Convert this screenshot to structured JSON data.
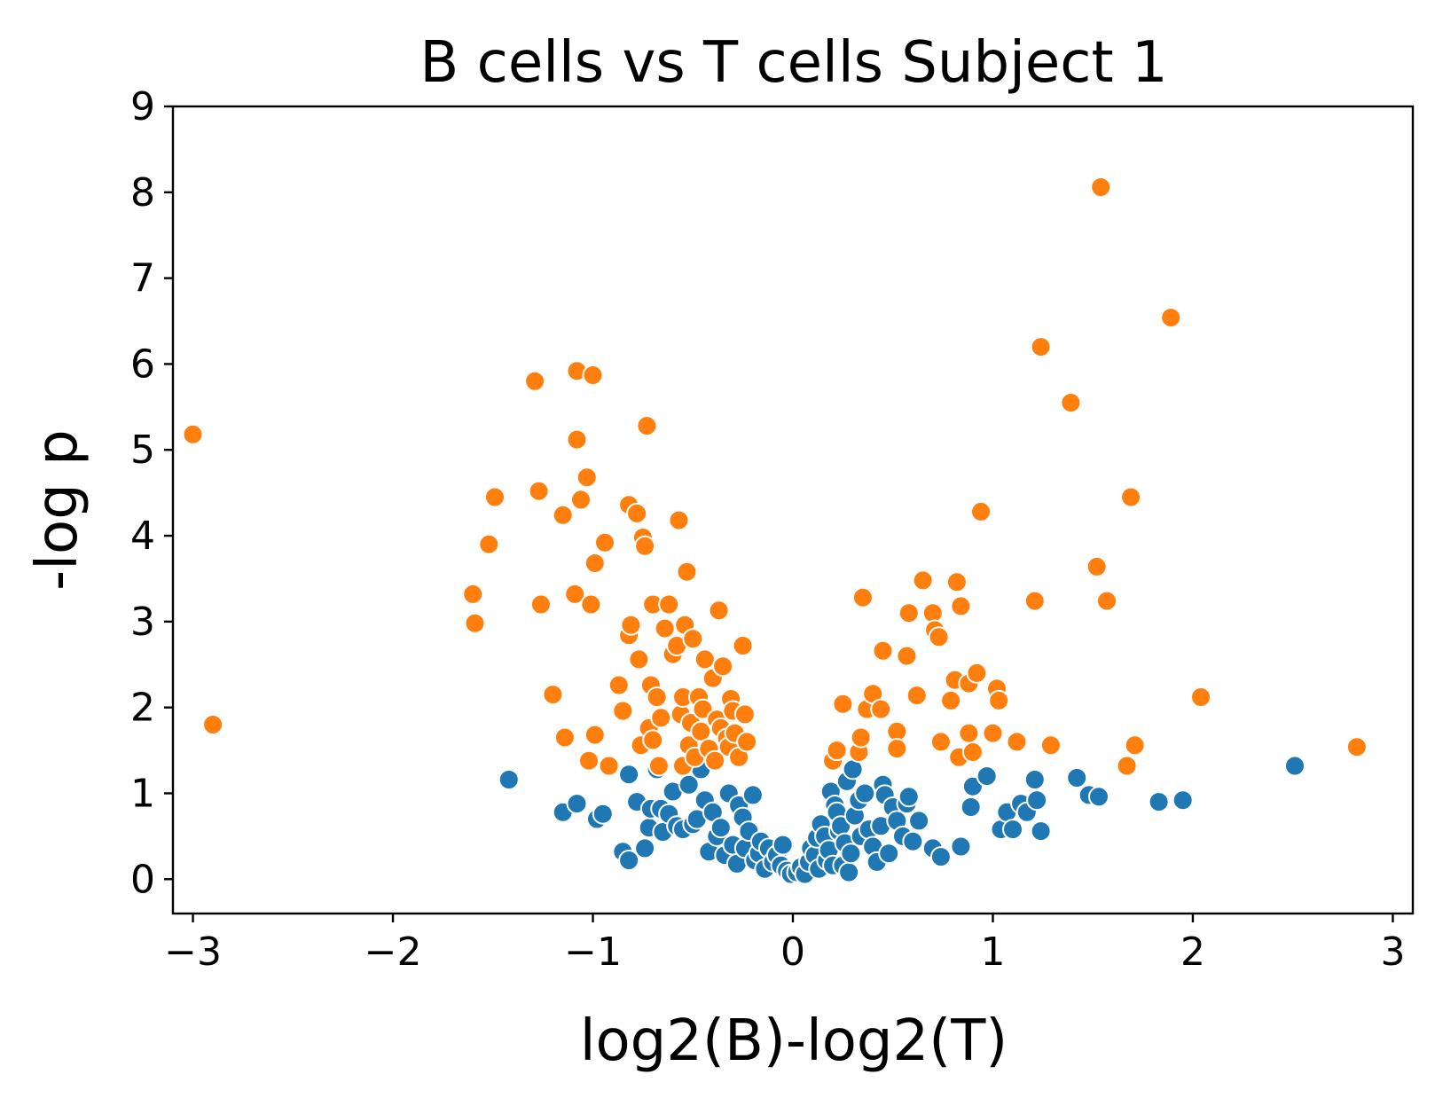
{
  "chart_data": {
    "type": "scatter",
    "title": "B cells vs T cells Subject 1",
    "xlabel": "log2(B)-log2(T)",
    "ylabel": "-log p",
    "xlim": [
      -3.1,
      3.1
    ],
    "ylim": [
      -0.4,
      9.0
    ],
    "x_ticks": [
      -3,
      -2,
      -1,
      0,
      1,
      2,
      3
    ],
    "x_tick_labels": [
      "−3",
      "−2",
      "−1",
      "0",
      "1",
      "2",
      "3"
    ],
    "y_ticks": [
      0,
      1,
      2,
      3,
      4,
      5,
      6,
      7,
      8,
      9
    ],
    "y_tick_labels": [
      "0",
      "1",
      "2",
      "3",
      "4",
      "5",
      "6",
      "7",
      "8",
      "9"
    ],
    "grid": false,
    "legend": "none",
    "colors": {
      "blue": "#1f77b4",
      "orange": "#ff7f0e"
    },
    "series": [
      {
        "color": "#1f77b4",
        "points": [
          [
            -1.42,
            1.16
          ],
          [
            -1.15,
            0.78
          ],
          [
            -1.08,
            0.88
          ],
          [
            -0.98,
            0.7
          ],
          [
            -0.95,
            0.76
          ],
          [
            -0.85,
            0.32
          ],
          [
            -0.82,
            0.22
          ],
          [
            -0.82,
            1.22
          ],
          [
            -0.78,
            0.9
          ],
          [
            -0.74,
            0.36
          ],
          [
            -0.72,
            0.6
          ],
          [
            -0.71,
            0.82
          ],
          [
            -0.68,
            1.28
          ],
          [
            -0.66,
            0.82
          ],
          [
            -0.65,
            0.55
          ],
          [
            -0.62,
            0.76
          ],
          [
            -0.6,
            1.02
          ],
          [
            -0.58,
            0.62
          ],
          [
            -0.55,
            0.58
          ],
          [
            -0.52,
            1.1
          ],
          [
            -0.5,
            0.64
          ],
          [
            -0.48,
            0.7
          ],
          [
            -0.46,
            1.28
          ],
          [
            -0.44,
            0.92
          ],
          [
            -0.42,
            0.32
          ],
          [
            -0.4,
            0.78
          ],
          [
            -0.38,
            0.5
          ],
          [
            -0.36,
            0.6
          ],
          [
            -0.34,
            0.28
          ],
          [
            -0.32,
            1.0
          ],
          [
            -0.3,
            0.4
          ],
          [
            -0.28,
            0.18
          ],
          [
            -0.27,
            0.86
          ],
          [
            -0.25,
            0.72
          ],
          [
            -0.24,
            0.36
          ],
          [
            -0.22,
            0.56
          ],
          [
            -0.2,
            0.98
          ],
          [
            -0.19,
            0.22
          ],
          [
            -0.17,
            0.3
          ],
          [
            -0.16,
            0.44
          ],
          [
            -0.14,
            0.12
          ],
          [
            -0.12,
            0.36
          ],
          [
            -0.1,
            0.2
          ],
          [
            -0.08,
            0.28
          ],
          [
            -0.06,
            0.16
          ],
          [
            -0.05,
            0.4
          ],
          [
            -0.03,
            0.1
          ],
          [
            -0.01,
            0.06
          ],
          [
            0.02,
            0.08
          ],
          [
            0.04,
            0.14
          ],
          [
            0.06,
            0.06
          ],
          [
            0.08,
            0.2
          ],
          [
            0.09,
            0.36
          ],
          [
            0.11,
            0.28
          ],
          [
            0.12,
            0.48
          ],
          [
            0.13,
            0.12
          ],
          [
            0.14,
            0.64
          ],
          [
            0.16,
            0.5
          ],
          [
            0.17,
            0.22
          ],
          [
            0.18,
            0.34
          ],
          [
            0.19,
            1.02
          ],
          [
            0.2,
            0.16
          ],
          [
            0.21,
            0.86
          ],
          [
            0.22,
            0.78
          ],
          [
            0.23,
            0.56
          ],
          [
            0.24,
            0.62
          ],
          [
            0.25,
            0.16
          ],
          [
            0.26,
            0.42
          ],
          [
            0.27,
            1.14
          ],
          [
            0.28,
            0.08
          ],
          [
            0.29,
            0.3
          ],
          [
            0.3,
            1.28
          ],
          [
            0.31,
            0.74
          ],
          [
            0.33,
            0.92
          ],
          [
            0.34,
            0.5
          ],
          [
            0.36,
            1.0
          ],
          [
            0.38,
            0.58
          ],
          [
            0.4,
            0.38
          ],
          [
            0.42,
            0.2
          ],
          [
            0.44,
            0.62
          ],
          [
            0.45,
            1.1
          ],
          [
            0.46,
            0.98
          ],
          [
            0.48,
            0.3
          ],
          [
            0.5,
            0.84
          ],
          [
            0.52,
            0.68
          ],
          [
            0.55,
            0.5
          ],
          [
            0.57,
            0.88
          ],
          [
            0.58,
            0.96
          ],
          [
            0.6,
            0.44
          ],
          [
            0.63,
            0.68
          ],
          [
            0.7,
            0.36
          ],
          [
            0.74,
            0.26
          ],
          [
            0.84,
            0.38
          ],
          [
            0.89,
            0.84
          ],
          [
            0.9,
            1.08
          ],
          [
            0.97,
            1.2
          ],
          [
            1.04,
            0.58
          ],
          [
            1.07,
            0.78
          ],
          [
            1.1,
            0.58
          ],
          [
            1.14,
            0.88
          ],
          [
            1.17,
            0.78
          ],
          [
            1.21,
            1.16
          ],
          [
            1.22,
            0.92
          ],
          [
            1.24,
            0.56
          ],
          [
            1.42,
            1.18
          ],
          [
            1.48,
            0.98
          ],
          [
            1.53,
            0.96
          ],
          [
            1.83,
            0.9
          ],
          [
            1.95,
            0.92
          ],
          [
            2.51,
            1.32
          ]
        ]
      },
      {
        "color": "#ff7f0e",
        "points": [
          [
            -3.0,
            5.18
          ],
          [
            -2.9,
            1.8
          ],
          [
            -1.6,
            3.32
          ],
          [
            -1.59,
            2.98
          ],
          [
            -1.52,
            3.9
          ],
          [
            -1.49,
            4.45
          ],
          [
            -1.29,
            5.8
          ],
          [
            -1.27,
            4.52
          ],
          [
            -1.26,
            3.2
          ],
          [
            -1.2,
            2.15
          ],
          [
            -1.15,
            4.24
          ],
          [
            -1.14,
            1.65
          ],
          [
            -1.09,
            3.32
          ],
          [
            -1.08,
            5.12
          ],
          [
            -1.08,
            5.92
          ],
          [
            -1.06,
            4.42
          ],
          [
            -1.03,
            4.68
          ],
          [
            -1.02,
            1.38
          ],
          [
            -1.01,
            3.2
          ],
          [
            -1.0,
            5.87
          ],
          [
            -0.99,
            1.68
          ],
          [
            -0.99,
            3.68
          ],
          [
            -0.94,
            3.92
          ],
          [
            -0.92,
            1.32
          ],
          [
            -0.87,
            2.26
          ],
          [
            -0.85,
            1.96
          ],
          [
            -0.82,
            4.36
          ],
          [
            -0.82,
            2.84
          ],
          [
            -0.81,
            2.96
          ],
          [
            -0.78,
            4.26
          ],
          [
            -0.77,
            2.56
          ],
          [
            -0.76,
            1.56
          ],
          [
            -0.75,
            3.98
          ],
          [
            -0.74,
            3.88
          ],
          [
            -0.73,
            5.28
          ],
          [
            -0.72,
            1.76
          ],
          [
            -0.71,
            2.26
          ],
          [
            -0.7,
            1.62
          ],
          [
            -0.7,
            3.2
          ],
          [
            -0.68,
            2.12
          ],
          [
            -0.67,
            1.32
          ],
          [
            -0.66,
            1.88
          ],
          [
            -0.64,
            2.92
          ],
          [
            -0.62,
            3.2
          ],
          [
            -0.6,
            2.62
          ],
          [
            -0.58,
            2.72
          ],
          [
            -0.57,
            4.18
          ],
          [
            -0.56,
            1.92
          ],
          [
            -0.55,
            2.12
          ],
          [
            -0.55,
            1.32
          ],
          [
            -0.54,
            2.96
          ],
          [
            -0.53,
            3.58
          ],
          [
            -0.52,
            1.56
          ],
          [
            -0.51,
            1.82
          ],
          [
            -0.5,
            2.8
          ],
          [
            -0.49,
            1.42
          ],
          [
            -0.47,
            2.12
          ],
          [
            -0.46,
            1.72
          ],
          [
            -0.45,
            1.98
          ],
          [
            -0.44,
            2.56
          ],
          [
            -0.42,
            1.52
          ],
          [
            -0.4,
            2.34
          ],
          [
            -0.39,
            1.38
          ],
          [
            -0.38,
            1.86
          ],
          [
            -0.37,
            3.13
          ],
          [
            -0.36,
            1.76
          ],
          [
            -0.35,
            2.48
          ],
          [
            -0.33,
            1.64
          ],
          [
            -0.32,
            1.54
          ],
          [
            -0.31,
            2.1
          ],
          [
            -0.3,
            1.96
          ],
          [
            -0.29,
            1.7
          ],
          [
            -0.27,
            1.42
          ],
          [
            -0.25,
            2.72
          ],
          [
            -0.24,
            1.92
          ],
          [
            -0.23,
            1.6
          ],
          [
            0.2,
            1.38
          ],
          [
            0.22,
            1.5
          ],
          [
            0.25,
            2.04
          ],
          [
            0.33,
            1.48
          ],
          [
            0.34,
            1.65
          ],
          [
            0.35,
            3.28
          ],
          [
            0.37,
            1.98
          ],
          [
            0.4,
            2.16
          ],
          [
            0.44,
            1.98
          ],
          [
            0.45,
            2.66
          ],
          [
            0.52,
            1.72
          ],
          [
            0.52,
            1.52
          ],
          [
            0.57,
            2.6
          ],
          [
            0.58,
            3.1
          ],
          [
            0.62,
            2.14
          ],
          [
            0.65,
            3.48
          ],
          [
            0.7,
            3.1
          ],
          [
            0.71,
            2.9
          ],
          [
            0.73,
            2.82
          ],
          [
            0.74,
            1.6
          ],
          [
            0.79,
            2.08
          ],
          [
            0.81,
            2.32
          ],
          [
            0.82,
            3.46
          ],
          [
            0.83,
            1.42
          ],
          [
            0.84,
            3.18
          ],
          [
            0.88,
            1.7
          ],
          [
            0.88,
            2.28
          ],
          [
            0.9,
            1.48
          ],
          [
            0.92,
            2.4
          ],
          [
            0.94,
            4.28
          ],
          [
            1.0,
            1.7
          ],
          [
            1.02,
            2.22
          ],
          [
            1.03,
            2.08
          ],
          [
            1.12,
            1.6
          ],
          [
            1.21,
            3.24
          ],
          [
            1.24,
            6.2
          ],
          [
            1.29,
            1.56
          ],
          [
            1.39,
            5.55
          ],
          [
            1.52,
            3.64
          ],
          [
            1.54,
            8.06
          ],
          [
            1.57,
            3.24
          ],
          [
            1.67,
            1.32
          ],
          [
            1.69,
            4.45
          ],
          [
            1.71,
            1.56
          ],
          [
            1.89,
            6.54
          ],
          [
            2.04,
            2.12
          ],
          [
            2.82,
            1.54
          ]
        ]
      }
    ]
  }
}
